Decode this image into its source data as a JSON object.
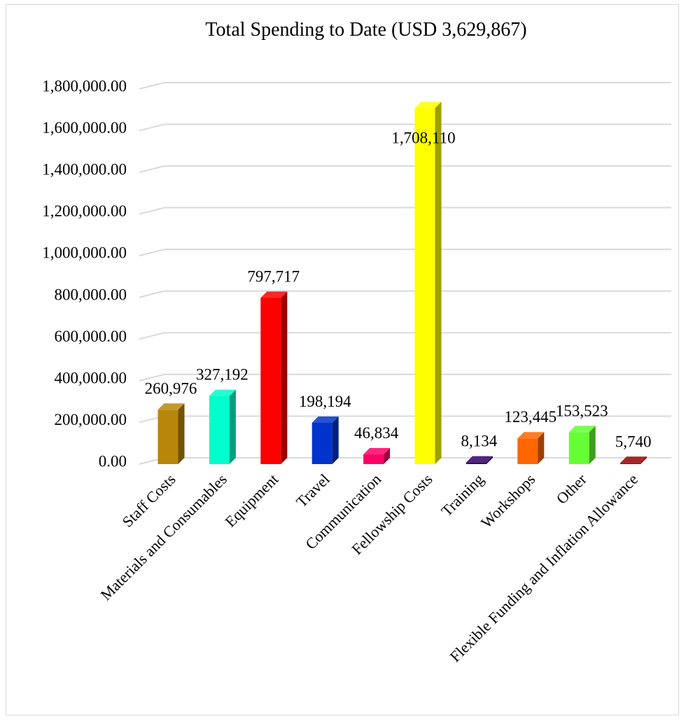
{
  "chart_data": {
    "type": "bar",
    "title": "Total Spending to Date (USD 3,629,867)",
    "xlabel": "",
    "ylabel": "",
    "ylim": [
      0,
      1800000
    ],
    "y_ticks": [
      0,
      200000,
      400000,
      600000,
      800000,
      1000000,
      1200000,
      1400000,
      1600000,
      1800000
    ],
    "y_tick_labels": [
      "0.00",
      "200,000.00",
      "400,000.00",
      "600,000.00",
      "800,000.00",
      "1,000,000.00",
      "1,200,000.00",
      "1,400,000.00",
      "1,600,000.00",
      "1,800,000.00"
    ],
    "grid": true,
    "legend": "none",
    "categories": [
      "Staff Costs",
      "Materials and Consumables",
      "Equipment",
      "Travel",
      "Communication",
      "Fellowship Costs",
      "Training",
      "Workshops",
      "Other",
      "Flexible Funding and Inflation Allowance"
    ],
    "values": [
      260976,
      327192,
      797717,
      198194,
      46834,
      1708110,
      8134,
      123445,
      153523,
      5740
    ],
    "data_labels": [
      "260,976",
      "327,192",
      "797,717",
      "198,194",
      "46,834",
      "1,708,110",
      "8,134",
      "123,445",
      "153,523",
      "5,740"
    ],
    "colors": [
      "#b8860b",
      "#00ffcc",
      "#ff0000",
      "#0033cc",
      "#ff0066",
      "#ffff00",
      "#330066",
      "#ff6600",
      "#66ff33",
      "#990000"
    ]
  }
}
